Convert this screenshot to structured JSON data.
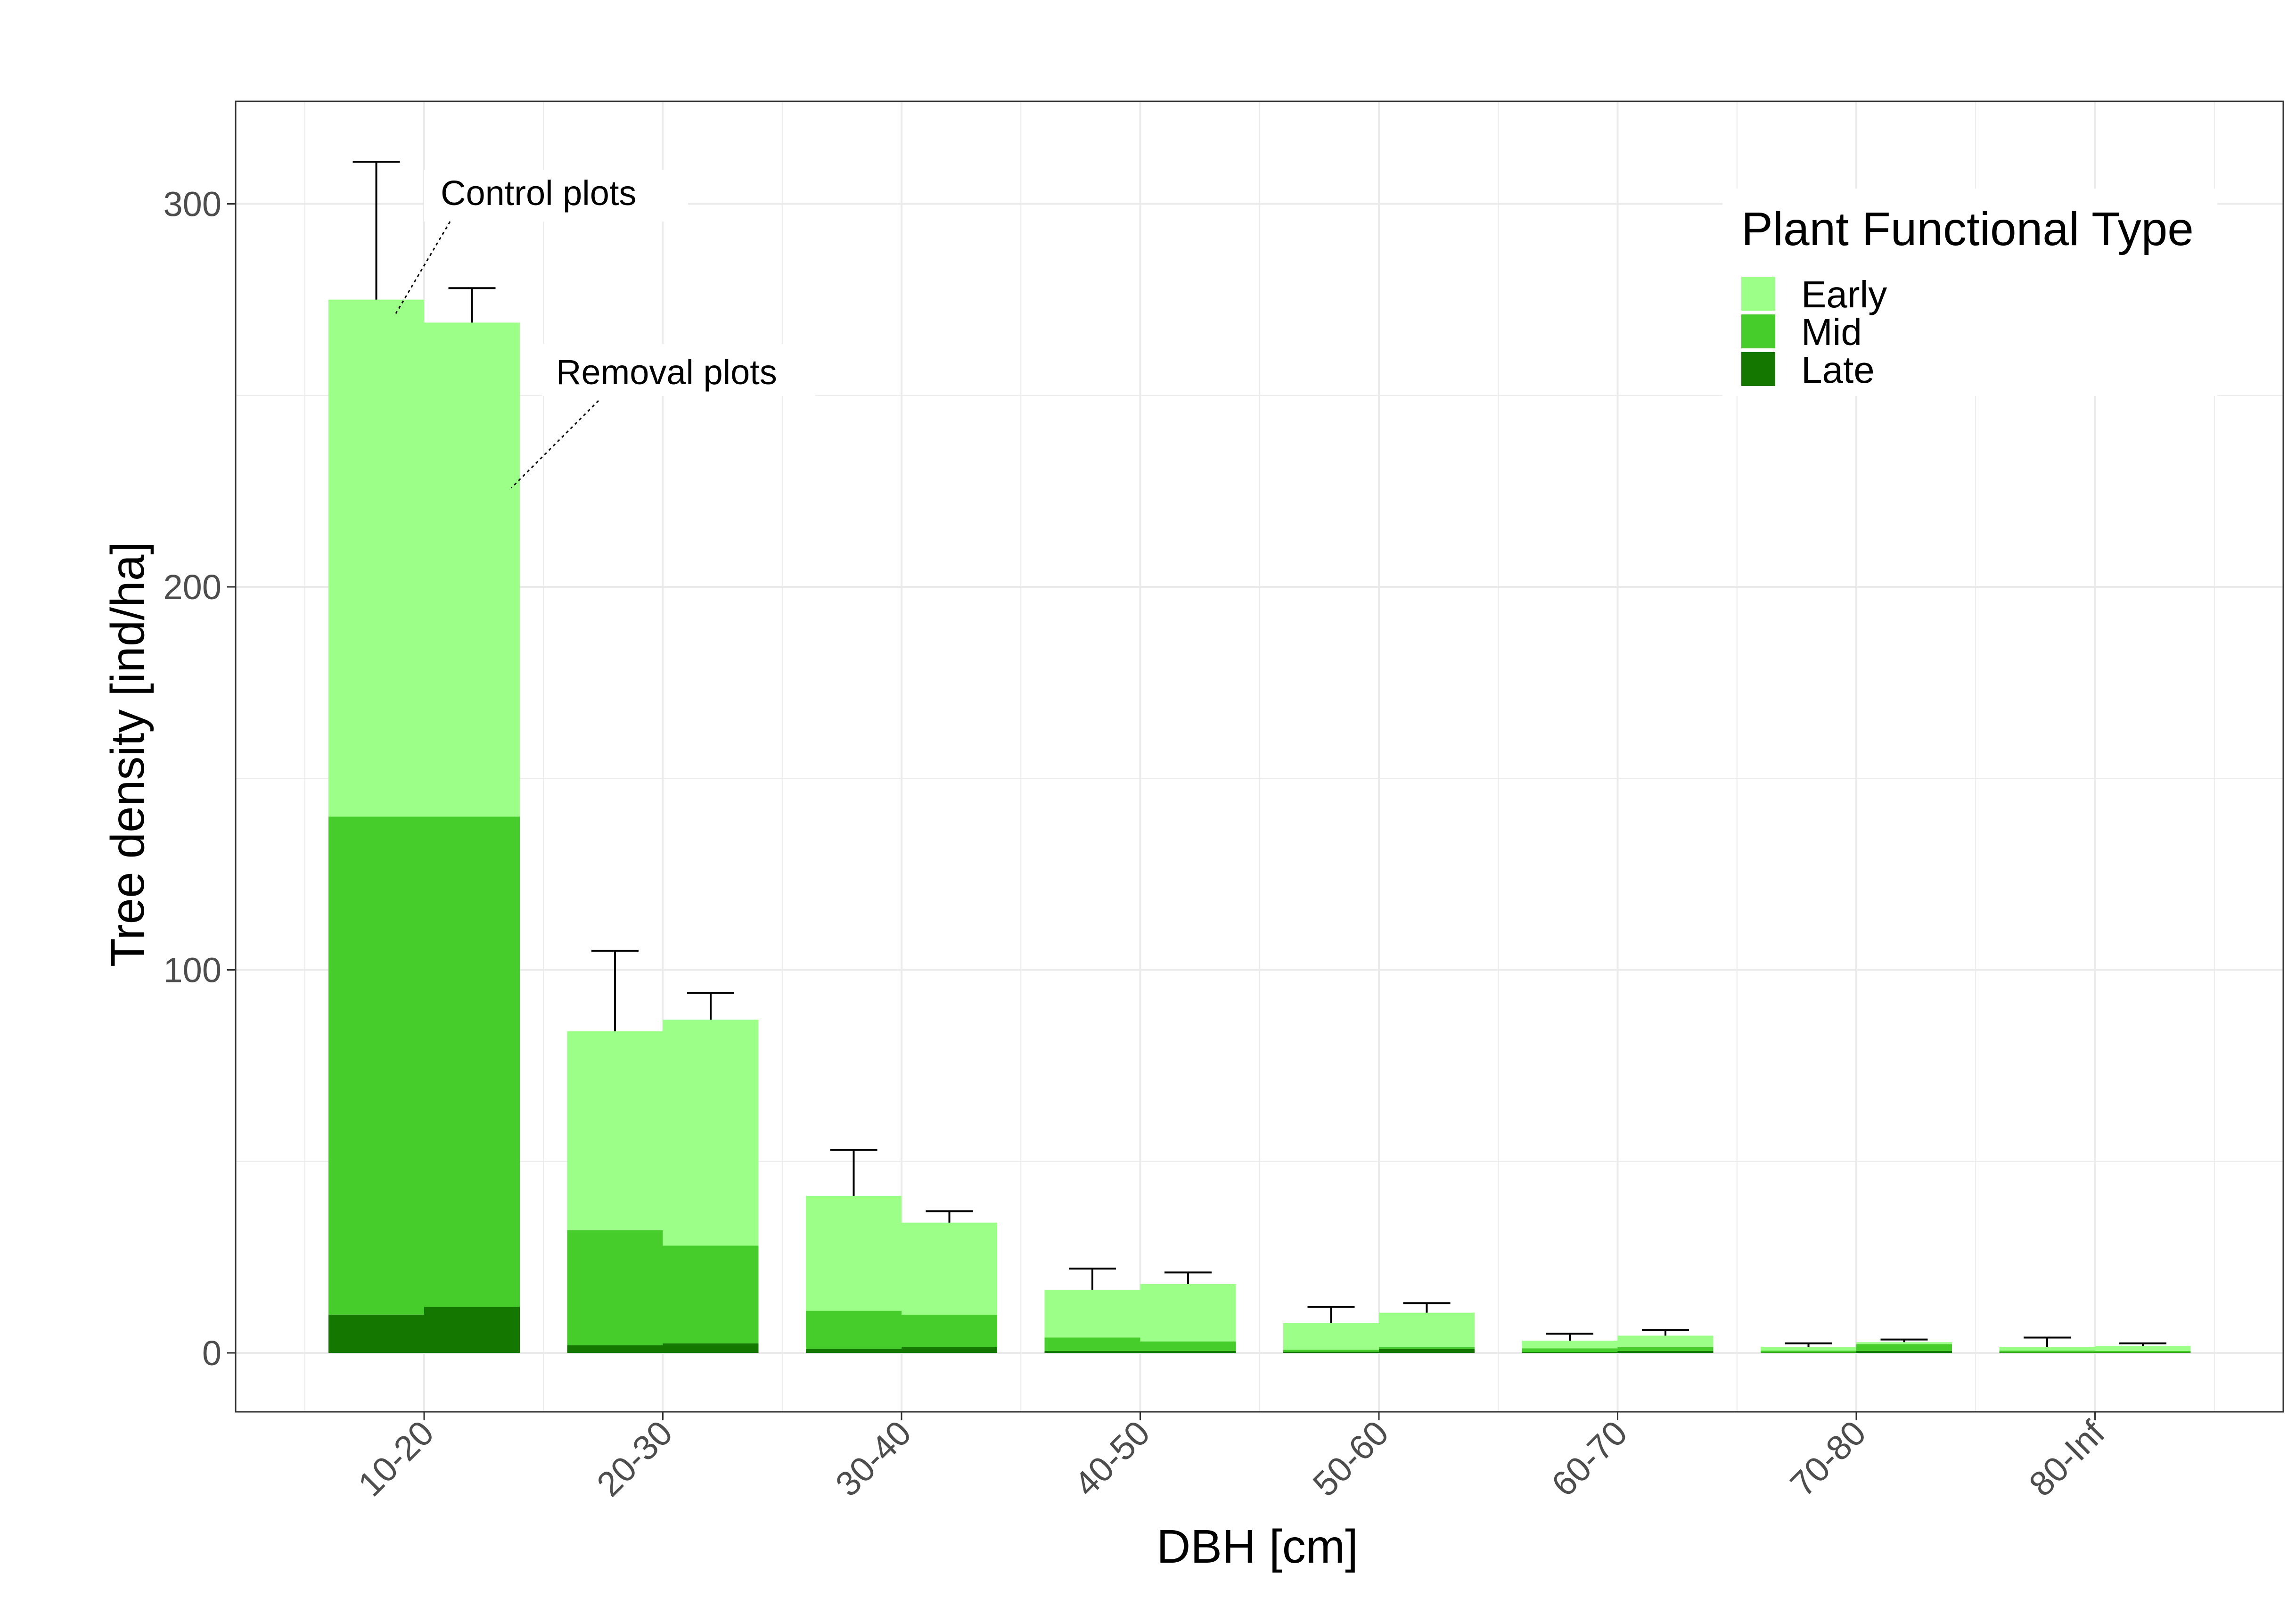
{
  "chart_data": {
    "type": "bar",
    "stacked": true,
    "categories": [
      "10-20",
      "20-30",
      "30-40",
      "40-50",
      "50-60",
      "60-70",
      "70-80",
      "80-Inf"
    ],
    "xlabel": "DBH [cm]",
    "ylabel": "Tree density [ind/ha]",
    "ylim": [
      -15,
      327
    ],
    "yticks": [
      0,
      100,
      200,
      300
    ],
    "grid": true,
    "legend": {
      "title": "Plant Functional Type",
      "position": "top-right",
      "entries": [
        "Early",
        "Mid",
        "Late"
      ]
    },
    "colors": {
      "Early": "#9cff87",
      "Mid": "#46cd2c",
      "Late": "#137700",
      "errorbar": "#000000"
    },
    "annotations": [
      {
        "text": "Control plots",
        "target_category": "10-20",
        "target_group": 0
      },
      {
        "text": "Removal plots",
        "target_category": "10-20",
        "target_group": 1
      }
    ],
    "groups": [
      {
        "stack_order": [
          "Late",
          "Mid",
          "Early"
        ],
        "series": [
          {
            "name": "Late",
            "values": [
              10,
              2,
              1,
              0.5,
              0.3,
              0.2,
              0.1,
              0.1
            ]
          },
          {
            "name": "Mid",
            "values": [
              130,
              30,
              10,
              3.5,
              0.5,
              1,
              0.5,
              0.5
            ]
          },
          {
            "name": "Early",
            "values": [
              135,
              52,
              30,
              12.5,
              7,
              2,
              1,
              1
            ]
          }
        ],
        "totals": [
          275,
          84,
          41,
          16.5,
          7.8,
          3.2,
          1.6,
          1.6
        ],
        "error_upper": [
          311,
          105,
          53,
          22,
          12,
          5,
          2.5,
          4
        ]
      },
      {
        "stack_order": [
          "Late",
          "Mid",
          "Early"
        ],
        "series": [
          {
            "name": "Late",
            "values": [
              12,
              2.5,
              1.5,
              0.5,
              1,
              0.5,
              0.5,
              0.1
            ]
          },
          {
            "name": "Mid",
            "values": [
              128,
              25.5,
              8.5,
              2.5,
              0.5,
              1,
              1.8,
              0.4
            ]
          },
          {
            "name": "Early",
            "values": [
              129,
              59,
              24,
              15,
              9,
              3,
              0.5,
              1.3
            ]
          }
        ],
        "totals": [
          269,
          87,
          34,
          18,
          10.5,
          4.5,
          2.8,
          1.8
        ],
        "error_upper": [
          278,
          94,
          37,
          21,
          13,
          6,
          3.5,
          2.5
        ]
      }
    ]
  }
}
